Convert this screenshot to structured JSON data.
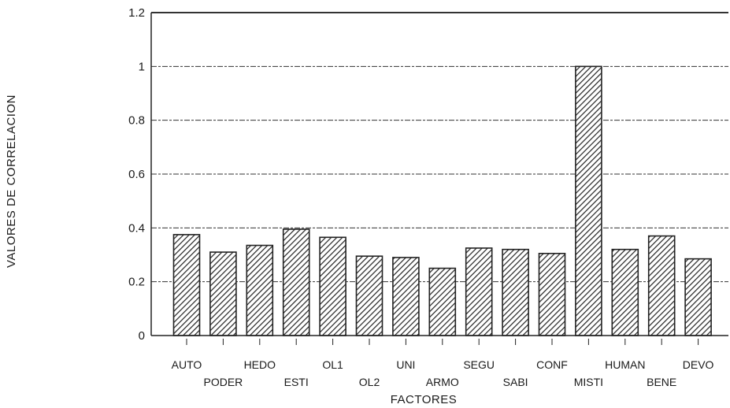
{
  "chart_data": {
    "type": "bar",
    "title": "",
    "xlabel": "FACTORES",
    "ylabel": "VALORES DE CORRELACION",
    "ylim": [
      0,
      1.2
    ],
    "yticks": [
      "0",
      "0.2",
      "0.4",
      "0.6",
      "0.8",
      "1",
      "1.2"
    ],
    "grid": true,
    "categories": [
      "AUTO",
      "PODER",
      "HEDO",
      "ESTI",
      "OL1",
      "OL2",
      "UNI",
      "ARMO",
      "SEGU",
      "SABI",
      "CONF",
      "MISTI",
      "HUMAN",
      "BENE",
      "DEVO"
    ],
    "values": [
      0.375,
      0.31,
      0.335,
      0.395,
      0.365,
      0.295,
      0.29,
      0.25,
      0.325,
      0.32,
      0.305,
      1.0,
      0.32,
      0.37,
      0.285
    ],
    "colors": {
      "bar_fill": "#ffffff",
      "bar_hatch": "#222222",
      "axis": "#222222",
      "grid": "#333333"
    }
  }
}
